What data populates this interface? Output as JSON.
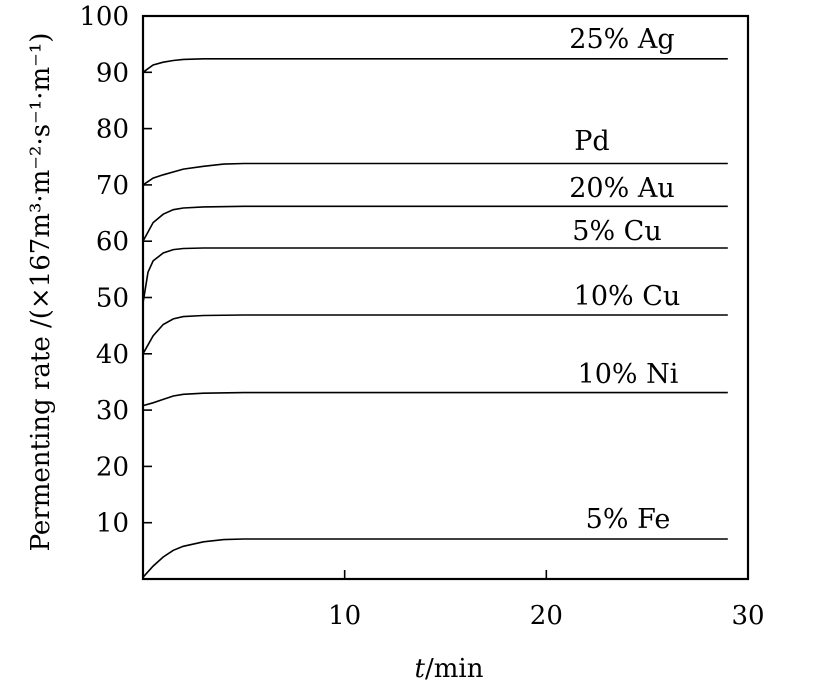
{
  "chart_data": {
    "type": "line",
    "title": "",
    "xlabel_italic": "t",
    "xlabel_rest": "/min",
    "ylabel": "Permenting rate /(×167m³·m⁻²·s⁻¹·m⁻¹)",
    "xlim": [
      0,
      30
    ],
    "ylim": [
      0,
      100
    ],
    "x_ticks": [
      10,
      20,
      30
    ],
    "y_ticks": [
      10,
      20,
      30,
      40,
      50,
      60,
      70,
      80,
      90,
      100
    ],
    "grid": false,
    "legend": "none",
    "series": [
      {
        "name": "25% Ag",
        "x": [
          0,
          0.5,
          1,
          1.5,
          2,
          3,
          5,
          10,
          20,
          29
        ],
        "y": [
          90,
          91.3,
          91.8,
          92.1,
          92.3,
          92.4,
          92.4,
          92.4,
          92.4,
          92.4
        ]
      },
      {
        "name": "Pd",
        "x": [
          0,
          0.5,
          1,
          2,
          3,
          4,
          5,
          10,
          20,
          29
        ],
        "y": [
          70,
          71.2,
          71.8,
          72.8,
          73.3,
          73.7,
          73.8,
          73.8,
          73.8,
          73.8
        ]
      },
      {
        "name": "20% Au",
        "x": [
          0,
          0.5,
          1,
          1.5,
          2,
          3,
          5,
          10,
          20,
          29
        ],
        "y": [
          60,
          63.3,
          64.8,
          65.6,
          65.9,
          66.1,
          66.2,
          66.2,
          66.2,
          66.2
        ]
      },
      {
        "name": "5% Cu",
        "x": [
          0,
          0.25,
          0.5,
          1,
          1.5,
          2,
          3,
          5,
          10,
          20,
          29
        ],
        "y": [
          49,
          54.5,
          56.5,
          57.9,
          58.5,
          58.7,
          58.8,
          58.8,
          58.8,
          58.8,
          58.8
        ]
      },
      {
        "name": "10% Cu",
        "x": [
          0,
          0.5,
          1,
          1.5,
          2,
          3,
          5,
          10,
          20,
          29
        ],
        "y": [
          40,
          43.2,
          45.2,
          46.2,
          46.6,
          46.8,
          46.9,
          46.9,
          46.9,
          46.9
        ]
      },
      {
        "name": "10% Ni",
        "x": [
          0,
          0.5,
          1,
          1.5,
          2,
          3,
          5,
          10,
          20,
          29
        ],
        "y": [
          30.8,
          31.3,
          31.9,
          32.5,
          32.8,
          33,
          33.1,
          33.1,
          33.1,
          33.1
        ]
      },
      {
        "name": "5% Fe",
        "x": [
          0,
          0.5,
          1,
          1.5,
          2,
          3,
          4,
          5,
          10,
          20,
          29
        ],
        "y": [
          0.3,
          2.3,
          3.9,
          5.1,
          5.8,
          6.6,
          7,
          7.1,
          7.1,
          7.1,
          7.1
        ]
      }
    ]
  }
}
